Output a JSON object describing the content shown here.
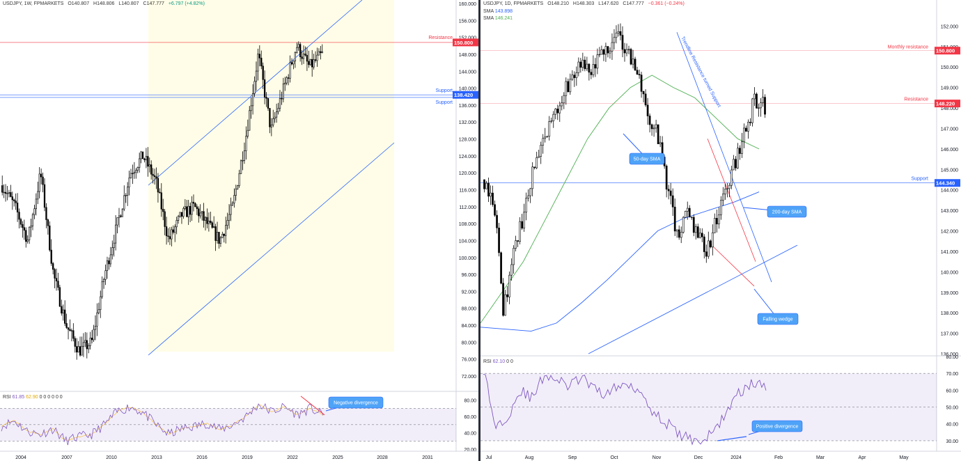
{
  "left": {
    "header": {
      "symbol": "USDJPY, 1W, FPMARKETS",
      "o": "O140.807",
      "h": "H148.806",
      "l": "L140.807",
      "c": "C147.777",
      "chg": "+6.797 (+4.82%)"
    },
    "rsi_header": {
      "label": "RSI",
      "v1": "61.85",
      "v2": "62.90",
      "rest": "0 0 0 0 0 0"
    },
    "price_ticks": [
      "160.000",
      "156.000",
      "152.000",
      "148.000",
      "144.000",
      "140.000",
      "136.000",
      "132.000",
      "128.000",
      "124.000",
      "120.000",
      "116.000",
      "112.000",
      "108.000",
      "104.000",
      "100.000",
      "96.000",
      "92.000",
      "88.000",
      "84.000",
      "80.000",
      "76.000",
      "72.000"
    ],
    "rsi_ticks": [
      "80.00",
      "60.00",
      "40.00",
      "20.00"
    ],
    "time_ticks": [
      "2004",
      "2007",
      "2010",
      "2013",
      "2016",
      "2019",
      "2022",
      "2025",
      "2028",
      "2031"
    ],
    "resistance": {
      "label": "Resistance",
      "price": "150.800",
      "value": 150.8
    },
    "support1": {
      "label": "Support",
      "price": "138.420",
      "value": 138.42
    },
    "support2": {
      "label": "Support",
      "price": "137.800",
      "value": 137.8
    },
    "annotation": "Negative divergence",
    "colors": {
      "up": "#ffffff",
      "down": "#000000",
      "channel": "#2962ff",
      "resistance": "#f23645",
      "rsi": "#7e57c2",
      "rsi_ma": "#f9c74f",
      "fill": "#fffde7"
    }
  },
  "right": {
    "header": {
      "symbol": "USDJPY, 1D, FPMARKETS",
      "o": "O148.210",
      "h": "H148.303",
      "l": "L147.620",
      "c": "C147.777",
      "chg": "−0.361 (−0.24%)"
    },
    "sma1": {
      "label": "SMA",
      "value": "143.898",
      "color": "#2962ff"
    },
    "sma2": {
      "label": "SMA",
      "value": "146.241",
      "color": "#4caf50"
    },
    "rsi_header": {
      "label": "RSI",
      "v1": "62.10",
      "rest": "0 0"
    },
    "price_ticks": [
      "152.000",
      "151.000",
      "150.000",
      "149.000",
      "148.000",
      "147.000",
      "146.000",
      "145.000",
      "144.000",
      "143.000",
      "142.000",
      "141.000",
      "140.000",
      "139.000",
      "138.000",
      "137.000",
      "136.000"
    ],
    "rsi_ticks": [
      "80.00",
      "70.00",
      "60.00",
      "50.00",
      "40.00",
      "30.00"
    ],
    "time_ticks": [
      "Jul",
      "Aug",
      "Sep",
      "Oct",
      "Nov",
      "Dec",
      "2024",
      "Feb",
      "Mar",
      "Apr",
      "May"
    ],
    "monthly_resistance": {
      "label": "Monthly resistance",
      "price": "150.800",
      "value": 150.8
    },
    "resistance": {
      "label": "Resistance",
      "price": "148.220",
      "value": 148.22
    },
    "support": {
      "label": "Support",
      "price": "144.340",
      "value": 144.34
    },
    "trend_label": "Trendline Resistance turned Support",
    "callouts": {
      "sma50": "50-day SMA",
      "sma200": "200-day SMA",
      "wedge": "Falling wedge",
      "divergence": "Positive divergence"
    }
  },
  "chart_data": [
    {
      "type": "candlestick",
      "title": "USDJPY, 1W, FPMARKETS",
      "ylim": [
        72,
        160
      ],
      "x": [
        "2004",
        "2007",
        "2010",
        "2013",
        "2016",
        "2019",
        "2022",
        "2025"
      ],
      "close_path": [
        117,
        112,
        104,
        120,
        96,
        84,
        78,
        80,
        96,
        108,
        120,
        124,
        118,
        104,
        110,
        112,
        108,
        104,
        112,
        128,
        148,
        130,
        140,
        150,
        145,
        148
      ],
      "lines": [
        {
          "name": "Resistance",
          "value": 150.8
        },
        {
          "name": "Support",
          "value": 138.42
        },
        {
          "name": "Support",
          "value": 137.8
        }
      ],
      "rsi_ylim": [
        20,
        90
      ],
      "rsi": [
        48,
        55,
        42,
        38,
        45,
        30,
        35,
        38,
        50,
        66,
        72,
        65,
        50,
        38,
        45,
        48,
        52,
        44,
        50,
        60,
        75,
        66,
        72,
        62,
        70,
        62
      ]
    },
    {
      "type": "candlestick",
      "title": "USDJPY, 1D, FPMARKETS",
      "ylim": [
        136,
        153
      ],
      "x": [
        "Jul",
        "Aug",
        "Sep",
        "Oct",
        "Nov",
        "Dec",
        "2024",
        "Feb",
        "Mar",
        "Apr",
        "May"
      ],
      "close_path": [
        144.5,
        143.5,
        138.0,
        141.0,
        142.5,
        145.0,
        146.0,
        147.5,
        148.5,
        149.5,
        150.0,
        149.5,
        150.5,
        151.2,
        151.5,
        150.5,
        149.5,
        147.5,
        146.5,
        144.0,
        141.5,
        143.0,
        142.0,
        141.0,
        142.5,
        144.0,
        145.5,
        147.0,
        148.5,
        148.0
      ],
      "sma50": [
        137.5,
        139.0,
        140.5,
        142.5,
        144.5,
        146.5,
        148.0,
        149.0,
        149.6,
        149.0,
        148.5,
        147.5,
        146.5,
        146.0
      ],
      "sma200": [
        137.3,
        137.2,
        137.1,
        137.5,
        138.5,
        139.6,
        140.8,
        142.0,
        142.6,
        143.0,
        143.4,
        143.9
      ],
      "lines": [
        {
          "name": "Monthly resistance",
          "value": 150.8
        },
        {
          "name": "Resistance",
          "value": 148.22
        },
        {
          "name": "Support",
          "value": 144.34
        }
      ],
      "rsi_ylim": [
        25,
        80
      ],
      "rsi": [
        73,
        38,
        45,
        60,
        55,
        70,
        66,
        62,
        68,
        60,
        58,
        62,
        64,
        58,
        45,
        40,
        33,
        31,
        30,
        38,
        50,
        60,
        64,
        62
      ]
    }
  ]
}
